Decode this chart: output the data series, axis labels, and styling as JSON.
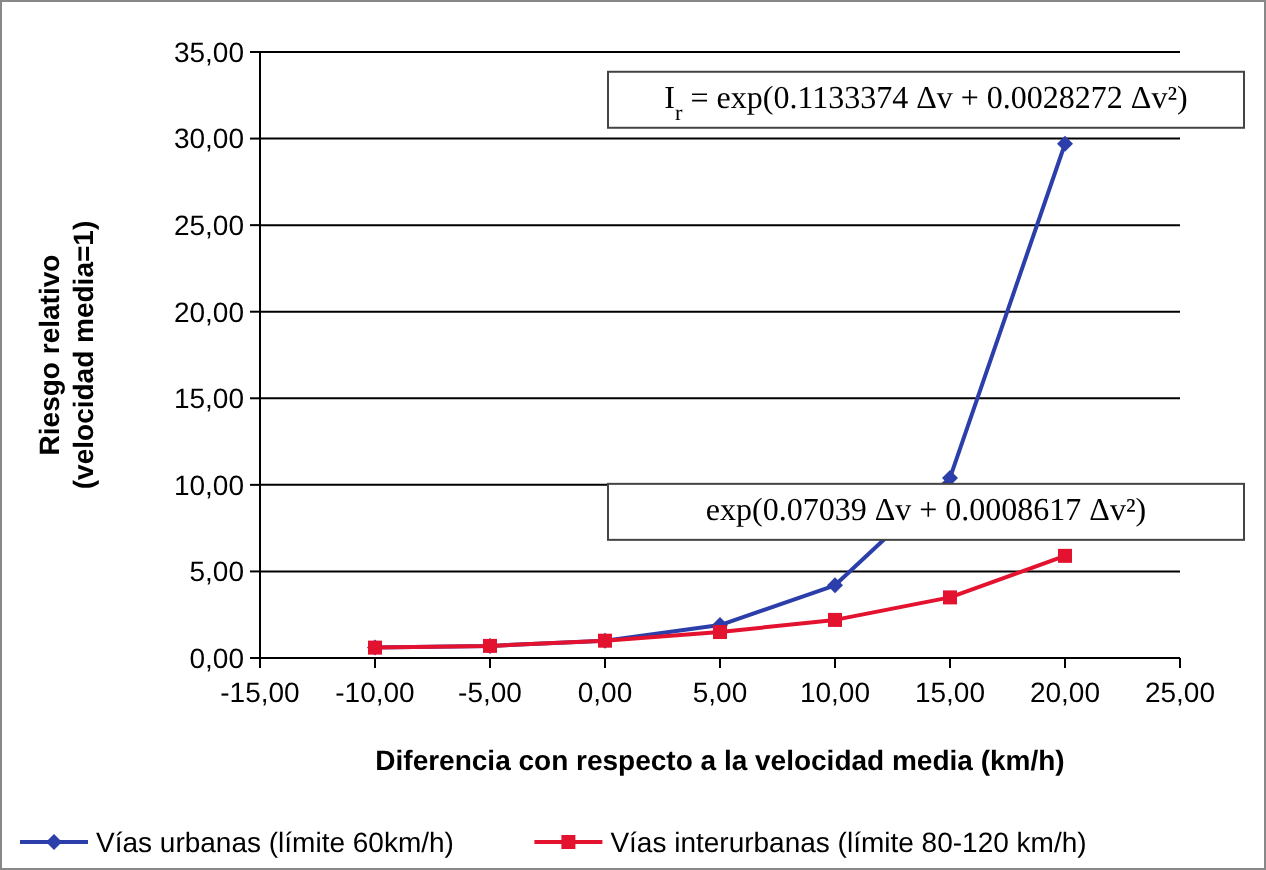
{
  "chart_data": {
    "type": "line",
    "xlabel": "Diferencia con respecto a la velocidad media (km/h)",
    "ylabel": "Riesgo relativo\n(velocidad media=1)",
    "x": [
      -10,
      -5,
      0,
      5,
      10,
      15,
      20
    ],
    "series": [
      {
        "name": "Vías urbanas (límite 60km/h)",
        "color": "#2b3eaa",
        "marker": "diamond",
        "values": [
          0.6,
          0.7,
          1.0,
          1.9,
          4.2,
          10.4,
          29.7
        ]
      },
      {
        "name": "Vías interurbanas (límite 80-120 km/h)",
        "color": "#e3122f",
        "marker": "square",
        "values": [
          0.6,
          0.7,
          1.0,
          1.5,
          2.2,
          3.5,
          5.9
        ]
      }
    ],
    "xlim": [
      -15,
      25
    ],
    "xticks": [
      {
        "value": -15,
        "label": "-15,00"
      },
      {
        "value": -10,
        "label": "-10,00"
      },
      {
        "value": -5,
        "label": "-5,00"
      },
      {
        "value": 0,
        "label": "0,00"
      },
      {
        "value": 5,
        "label": "5,00"
      },
      {
        "value": 10,
        "label": "10,00"
      },
      {
        "value": 15,
        "label": "15,00"
      },
      {
        "value": 20,
        "label": "20,00"
      },
      {
        "value": 25,
        "label": "25,00"
      }
    ],
    "ylim": [
      0,
      35
    ],
    "yticks": [
      {
        "value": 0,
        "label": "0,00"
      },
      {
        "value": 5,
        "label": "5,00"
      },
      {
        "value": 10,
        "label": "10,00"
      },
      {
        "value": 15,
        "label": "15,00"
      },
      {
        "value": 20,
        "label": "20,00"
      },
      {
        "value": 25,
        "label": "25,00"
      },
      {
        "value": 30,
        "label": "30,00"
      },
      {
        "value": 35,
        "label": "35,00"
      }
    ],
    "grid": "y",
    "legend": "bottom",
    "line_style": "solid",
    "annotations": [
      {
        "text": "I$_{r}$ = exp(0.1133374 Δv + 0.0028272 Δv²)",
        "x": 20,
        "y": 29.7
      },
      {
        "text": "exp(0.07039 Δv + 0.0008617 Δv²)",
        "x": 20,
        "y": 5.9
      }
    ]
  }
}
